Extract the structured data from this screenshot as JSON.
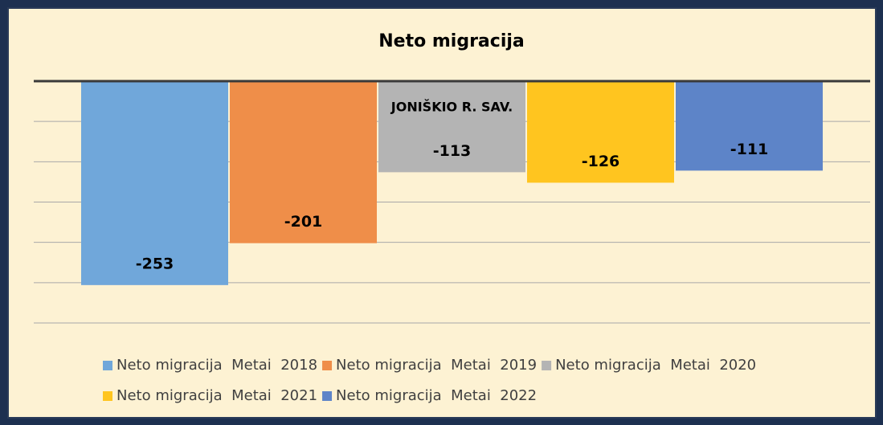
{
  "chart_data": {
    "type": "bar",
    "title": "Neto migracija",
    "categories": [
      "JONIŠKIO R. SAV."
    ],
    "series": [
      {
        "name": "Neto migracija  Metai  2018",
        "color": "#70a7da",
        "values": [
          -253
        ]
      },
      {
        "name": "Neto migracija  Metai  2019",
        "color": "#ef8e49",
        "values": [
          -201
        ]
      },
      {
        "name": "Neto migracija  Metai  2020",
        "color": "#b4b4b4",
        "values": [
          -113
        ]
      },
      {
        "name": "Neto migracija  Metai  2021",
        "color": "#ffc51f",
        "values": [
          -126
        ]
      },
      {
        "name": "Neto migracija  Metai  2022",
        "color": "#5d84c8",
        "values": [
          -111
        ]
      }
    ],
    "ylim": [
      -300,
      0
    ],
    "yticks": [
      -300,
      -250,
      -200,
      -150,
      -100,
      -50,
      0
    ],
    "grid": true
  }
}
